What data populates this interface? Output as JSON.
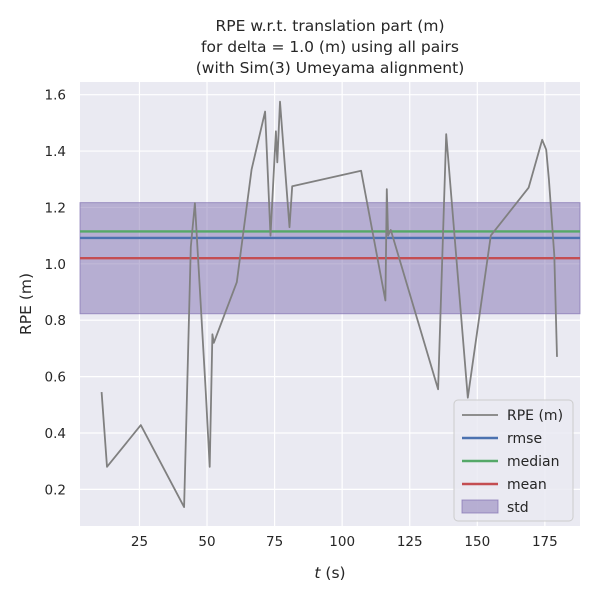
{
  "chart_data": {
    "type": "line",
    "title_lines": [
      "RPE w.r.t. translation part (m)",
      "for delta = 1.0 (m) using all pairs",
      "(with Sim(3) Umeyama alignment)"
    ],
    "xlabel_italic": "t",
    "xlabel_rest": " (s)",
    "ylabel": "RPE (m)",
    "xlim": [
      3,
      188
    ],
    "ylim": [
      0.07,
      1.645
    ],
    "xticks": [
      25,
      50,
      75,
      100,
      125,
      150,
      175
    ],
    "yticks": [
      0.2,
      0.4,
      0.6,
      0.8,
      1.0,
      1.2,
      1.4,
      1.6
    ],
    "grid": true,
    "legend_placement": "lower-right",
    "colors": {
      "background": "#eaeaf2",
      "grid": "#ffffff",
      "rpe": "#808080",
      "rmse": "#4c72b0",
      "median": "#55a868",
      "mean": "#c44e52",
      "std": "#8172b2"
    },
    "legend": {
      "rpe": "RPE (m)",
      "rmse": "rmse",
      "median": "median",
      "mean": "mean",
      "std": "std"
    },
    "stats": {
      "rmse": 1.092,
      "median": 1.115,
      "mean": 1.02,
      "std_band": [
        0.823,
        1.217
      ]
    },
    "series": [
      {
        "name": "RPE (m)",
        "points": [
          [
            11.0,
            0.545
          ],
          [
            13.0,
            0.28
          ],
          [
            25.5,
            0.428
          ],
          [
            41.5,
            0.137
          ],
          [
            44.0,
            1.06
          ],
          [
            45.5,
            1.215
          ],
          [
            49.5,
            0.55
          ],
          [
            51.0,
            0.28
          ],
          [
            52.0,
            0.75
          ],
          [
            52.5,
            0.72
          ],
          [
            61.0,
            0.935
          ],
          [
            66.5,
            1.335
          ],
          [
            71.5,
            1.54
          ],
          [
            73.5,
            1.1
          ],
          [
            75.5,
            1.47
          ],
          [
            76.0,
            1.36
          ],
          [
            77.0,
            1.575
          ],
          [
            80.5,
            1.13
          ],
          [
            81.5,
            1.275
          ],
          [
            107.0,
            1.33
          ],
          [
            116.0,
            0.87
          ],
          [
            116.5,
            1.265
          ],
          [
            117.0,
            1.1
          ],
          [
            118.0,
            1.12
          ],
          [
            135.5,
            0.555
          ],
          [
            138.5,
            1.46
          ],
          [
            146.5,
            0.525
          ],
          [
            155.0,
            1.1
          ],
          [
            169.0,
            1.27
          ],
          [
            174.0,
            1.44
          ],
          [
            175.5,
            1.405
          ],
          [
            176.5,
            1.3
          ],
          [
            178.5,
            1.03
          ],
          [
            179.5,
            0.67
          ]
        ]
      }
    ]
  }
}
